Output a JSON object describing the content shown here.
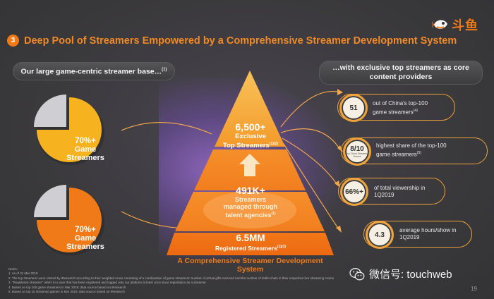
{
  "logo": {
    "text": "斗鱼",
    "icon": "douyu-fish-icon",
    "color": "#f07a17"
  },
  "header": {
    "number": "3",
    "title": "Deep Pool of Streamers Empowered by a Comprehensive Streamer Development System"
  },
  "left_pill": {
    "text": "Our large game-centric streamer base…",
    "note": "(1)"
  },
  "right_pill": {
    "line1": "…with exclusive top streamers as core",
    "line2": "content providers"
  },
  "pies": [
    {
      "pct": "70%+",
      "line1": "Game",
      "line2": "Streamers",
      "value": 0.7,
      "color": "#f6b21f"
    },
    {
      "pct": "70%+",
      "line1": "Game",
      "line2": "Streamers",
      "value": 0.7,
      "color": "#f07a17"
    }
  ],
  "pyramid": {
    "top": {
      "value": "6,500+",
      "line1": "Exclusive",
      "line2": "Top Streamers",
      "note": "(1)(2)"
    },
    "middle": {
      "value": "491K+",
      "line1": "Streamers",
      "line2": "managed through",
      "line3": "talent agencies",
      "note": "(1)"
    },
    "bottom": {
      "value": "6.5MM",
      "line1": "Registered Streamers",
      "note": "(1)(3)"
    },
    "caption": "A Comprehensive Streamer Development System"
  },
  "stats": [
    {
      "value": "51",
      "sub": "",
      "text1": "out of China's top-100",
      "text2": "game streamers",
      "note": "(4)"
    },
    {
      "value": "8/10",
      "sub": "Top China Streamed Games",
      "text1": "highest share of the top-100",
      "text2": "game streamers",
      "note": "(5)"
    },
    {
      "value": "66%+",
      "sub": "",
      "text1": "of total viewership in",
      "text2": "1Q2019",
      "note": ""
    },
    {
      "value": "4.3",
      "sub": "",
      "text1": "average hours/show in",
      "text2": "1Q2019",
      "note": ""
    }
  ],
  "notes": [
    "Notes:",
    "1.   As of 31 Mar 2019",
    "2.   The top streamers were ranked by iResearch according to their weighted score consisting of a combination of game streamers' number of virtual gifts received and the number of bullet chats in their respective live streaming rooms",
    "3.   \"Registered streamer\" refers to a user that has been registered and logged onto our platform at least once since registration as a streamer",
    "4.   Based on top 100 game streamers in Mar 2019; data source based on iResearch",
    "5.   Based on top 10 streamed games in Mar 2019; data source based on iResearch"
  ],
  "watermark": {
    "text": "微信号: touchweb",
    "icon": "wechat-icon"
  },
  "page_number": "19"
}
